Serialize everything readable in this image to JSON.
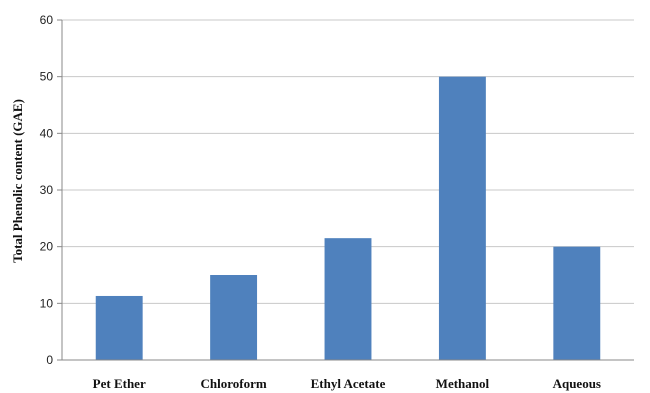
{
  "chart_data": {
    "type": "bar",
    "title": "",
    "xlabel": "",
    "ylabel": "Total Phenolic content (GAE)",
    "categories": [
      "Pet Ether",
      "Chloroform",
      "Ethyl Acetate",
      "Methanol",
      "Aqueous"
    ],
    "values": [
      11.3,
      15.0,
      21.5,
      50.0,
      20.0
    ],
    "ylim": [
      0,
      60
    ],
    "yticks": [
      0,
      10,
      20,
      30,
      40,
      50,
      60
    ],
    "grid": true,
    "legend": "none",
    "bar_color": "#4f81bd"
  }
}
